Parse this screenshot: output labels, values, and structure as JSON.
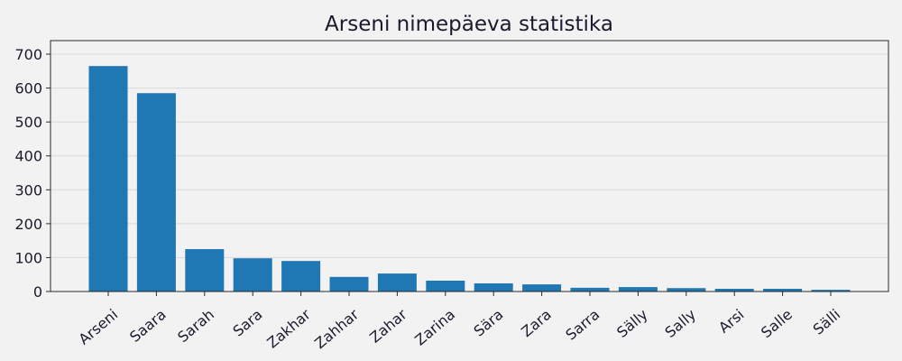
{
  "chart_data": {
    "type": "bar",
    "title": "Arseni nimepäeva statistika",
    "xlabel": "",
    "ylabel": "",
    "categories": [
      "Arseni",
      "Saara",
      "Sarah",
      "Sara",
      "Zakhar",
      "Zahhar",
      "Zahar",
      "Zarina",
      "Sära",
      "Zara",
      "Sarra",
      "Sälly",
      "Sally",
      "Arsi",
      "Salle",
      "Sälli"
    ],
    "values": [
      665,
      585,
      125,
      98,
      90,
      43,
      53,
      32,
      24,
      21,
      11,
      13,
      10,
      8,
      8,
      5
    ],
    "ylim": [
      0,
      740
    ],
    "yticks": [
      0,
      100,
      200,
      300,
      400,
      500,
      600,
      700
    ],
    "grid": "horizontal",
    "legend": "none",
    "bar_color": "#1f77b4"
  }
}
